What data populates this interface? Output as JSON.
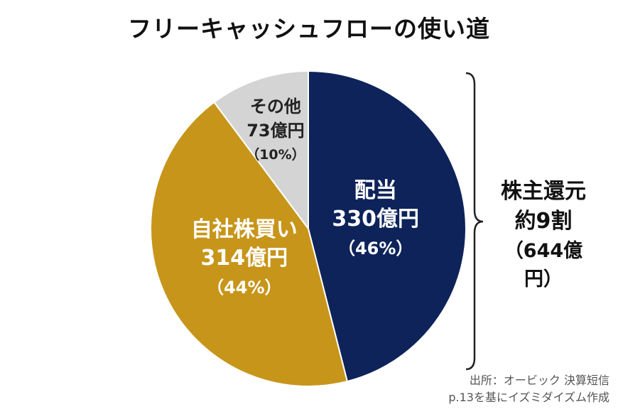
{
  "chart_data": {
    "type": "pie",
    "title": "フリーキャッシュフローの使い道",
    "slices": [
      {
        "name": "配当",
        "value": 330,
        "value_label": "330億円",
        "percent_label": "（46%）",
        "color": "#0d2359",
        "text_color": "#ffffff"
      },
      {
        "name": "自社株買い",
        "value": 314,
        "value_label": "314億円",
        "percent_label": "（44%）",
        "color": "#c7951a",
        "text_color": "#ffffff"
      },
      {
        "name": "その他",
        "value": 73,
        "value_label": "73億円",
        "percent_label": "（10%）",
        "color": "#d4d4d4",
        "text_color": "#222222"
      }
    ],
    "annotation": {
      "line1": "株主還元",
      "line2": "約9割",
      "line3": "（644億円）"
    }
  },
  "source": {
    "line1": "出所：オービック 決算短信",
    "line2": "p.13を基にイズミダイズム作成"
  }
}
